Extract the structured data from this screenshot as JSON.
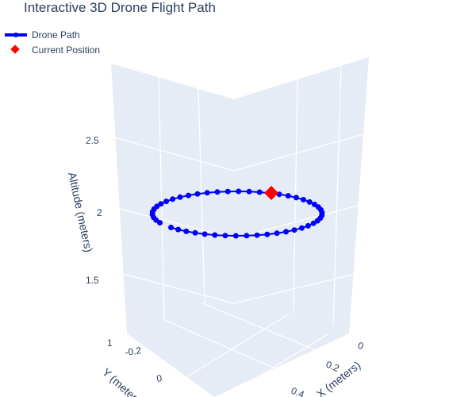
{
  "chart_data": {
    "type": "scatter3d",
    "title": "Interactive 3D Drone Flight Path",
    "legend": {
      "placement": "top-left",
      "entries": [
        "Drone Path",
        "Current Position"
      ]
    },
    "axes": {
      "x": {
        "label": "X (meters)",
        "ticks": [
          "0",
          "0.2",
          "0.4"
        ]
      },
      "y": {
        "label": "Y (meters)",
        "ticks": [
          "-0.2",
          "0"
        ]
      },
      "z": {
        "label": "Altitude (meters)",
        "ticks": [
          "1.5",
          "2",
          "2.5"
        ]
      }
    },
    "series": [
      {
        "name": "Drone Path",
        "mode": "lines+markers",
        "color": "#0000ff",
        "description_points": "circular loop at altitude ~2 m",
        "x": [
          0.5,
          0.496,
          0.485,
          0.467,
          0.441,
          0.41,
          0.373,
          0.331,
          0.285,
          0.236,
          0.185,
          0.132,
          0.079,
          0.026,
          -0.026,
          -0.079,
          -0.132,
          -0.185,
          -0.236,
          -0.285,
          -0.331,
          -0.373,
          -0.41,
          -0.441,
          -0.467,
          -0.485,
          -0.496,
          -0.5,
          -0.496,
          -0.485,
          -0.467,
          -0.441,
          -0.41,
          -0.373,
          -0.331,
          -0.285,
          -0.236,
          -0.185,
          -0.132,
          -0.079,
          -0.026,
          0.026,
          0.079,
          0.132,
          0.185,
          0.236,
          0.285,
          0.331,
          0.373,
          0.41
        ],
        "z": 2
      },
      {
        "name": "Current Position",
        "mode": "markers",
        "color": "#ff0000",
        "marker": "diamond",
        "z": 2
      }
    ],
    "grid": true
  }
}
